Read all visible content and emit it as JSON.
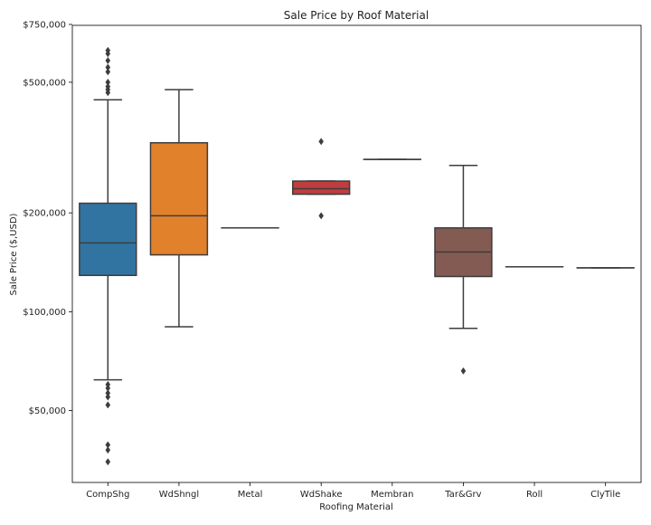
{
  "chart_data": {
    "type": "box",
    "title": "Sale Price by Roof Material",
    "xlabel": "Roofing Material",
    "ylabel": "Sale Price ($,USD)",
    "yscale": "log",
    "ylim": [
      30000,
      750000
    ],
    "yticks": [
      {
        "value": 50000,
        "label": "$50,000"
      },
      {
        "value": 100000,
        "label": "$100,000"
      },
      {
        "value": 200000,
        "label": "$200,000"
      },
      {
        "value": 500000,
        "label": "$500,000"
      },
      {
        "value": 750000,
        "label": "$750,000"
      }
    ],
    "grid": false,
    "categories": [
      "CompShg",
      "WdShngl",
      "Metal",
      "WdShake",
      "Membran",
      "Tar&Grv",
      "Roll",
      "ClyTile"
    ],
    "boxes": [
      {
        "category": "CompShg",
        "color": "#3274a1",
        "whisker_low": 62000,
        "q1": 129000,
        "median": 162000,
        "q3": 214000,
        "whisker_high": 442000,
        "outliers": [
          34900,
          37900,
          39300,
          52000,
          55000,
          56500,
          58500,
          60000,
          465000,
          475000,
          485000,
          500000,
          538000,
          555000,
          582000,
          611000,
          625000
        ]
      },
      {
        "category": "WdShngl",
        "color": "#e1812c",
        "whisker_low": 90000,
        "q1": 149000,
        "median": 196000,
        "q3": 327000,
        "whisker_high": 475000,
        "outliers": []
      },
      {
        "category": "Metal",
        "color": "#3a923a",
        "whisker_low": 180000,
        "q1": 180000,
        "median": 180000,
        "q3": 180000,
        "whisker_high": 180000,
        "outliers": []
      },
      {
        "category": "WdShake",
        "color": "#c03d3e",
        "whisker_low": 228000,
        "q1": 228000,
        "median": 237000,
        "q3": 250000,
        "whisker_high": 250000,
        "outliers": [
          196000,
          330000
        ]
      },
      {
        "category": "Membran",
        "color": "#9372b2",
        "whisker_low": 291000,
        "q1": 291000,
        "median": 291000,
        "q3": 291000,
        "whisker_high": 291000,
        "outliers": []
      },
      {
        "category": "Tar&Grv",
        "color": "#845b53",
        "whisker_low": 89000,
        "q1": 128000,
        "median": 152000,
        "q3": 180000,
        "whisker_high": 279000,
        "outliers": [
          66000
        ]
      },
      {
        "category": "Roll",
        "color": "#d684bd",
        "whisker_low": 137000,
        "q1": 137000,
        "median": 137000,
        "q3": 137000,
        "whisker_high": 137000,
        "outliers": []
      },
      {
        "category": "ClyTile",
        "color": "#7f7f7f",
        "whisker_low": 136000,
        "q1": 136000,
        "median": 136000,
        "q3": 136000,
        "whisker_high": 136000,
        "outliers": []
      }
    ]
  }
}
